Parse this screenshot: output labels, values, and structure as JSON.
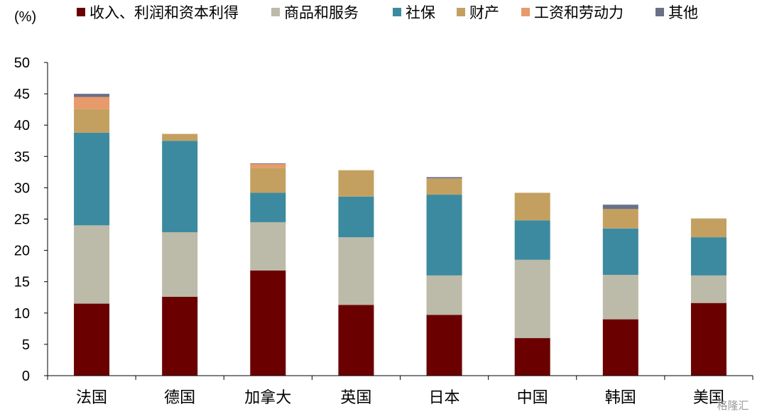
{
  "chart_data": {
    "type": "bar",
    "stacked": true,
    "unit_label": "(%)",
    "categories": [
      "法国",
      "德国",
      "加拿大",
      "英国",
      "日本",
      "中国",
      "韩国",
      "美国"
    ],
    "series": [
      {
        "name": "收入、利润和资本利得",
        "color": "#6b0000",
        "values": [
          11.5,
          12.6,
          16.8,
          11.3,
          9.7,
          6.0,
          9.0,
          11.6
        ]
      },
      {
        "name": "商品和服务",
        "color": "#bcbaa8",
        "values": [
          12.5,
          10.3,
          7.7,
          10.8,
          6.3,
          12.5,
          7.1,
          4.4
        ]
      },
      {
        "name": "社保",
        "color": "#3c8aa0",
        "values": [
          14.8,
          14.6,
          4.7,
          6.5,
          12.9,
          6.3,
          7.4,
          6.1
        ]
      },
      {
        "name": "财产",
        "color": "#c4a060",
        "values": [
          3.8,
          1.1,
          4.0,
          4.2,
          2.6,
          4.4,
          3.1,
          3.0
        ]
      },
      {
        "name": "工资和劳动力",
        "color": "#e89a6a",
        "values": [
          1.9,
          0.0,
          0.6,
          0.0,
          0.0,
          0.0,
          0.0,
          0.0
        ]
      },
      {
        "name": "其他",
        "color": "#6a7088",
        "values": [
          0.5,
          0.0,
          0.1,
          0.0,
          0.2,
          0.0,
          0.7,
          0.0
        ]
      }
    ],
    "ylim": [
      0,
      50
    ],
    "yticks": [
      0,
      5,
      10,
      15,
      20,
      25,
      30,
      35,
      40,
      45,
      50
    ],
    "legend_position": "top",
    "grid": false
  },
  "watermark": "格隆汇"
}
